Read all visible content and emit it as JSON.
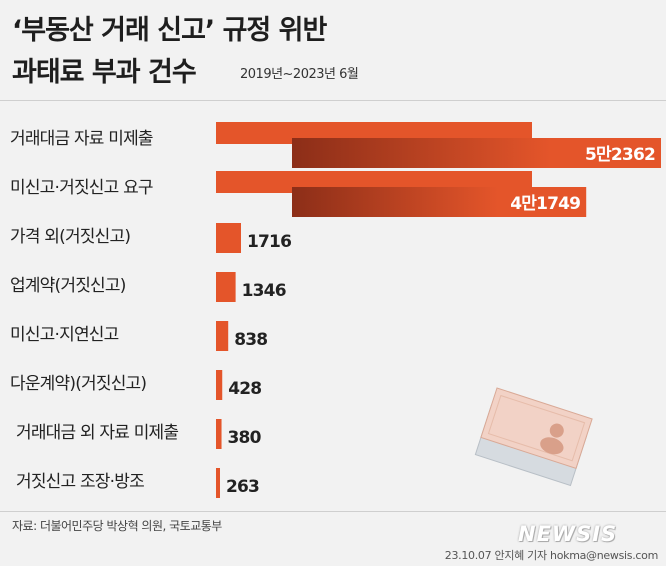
{
  "header": {
    "title_line1": "‘부동산 거래 신고’ 규정 위반",
    "title_line2": "과태료 부과 건수",
    "period": "2019년~2023년 6월"
  },
  "footer": {
    "source": "자료: 더불어민주당 박상혁 의원, 국토교통부",
    "credit": "23.10.07 안지혜 기자 hokma@newsis.com",
    "logo": "NEWSIS"
  },
  "colors": {
    "bar": "#e4552a",
    "bar_dark": "#8c2e18",
    "background": "#f2f2f2"
  },
  "chart_data": {
    "type": "bar",
    "orientation": "horizontal",
    "title": "‘부동산 거래 신고’ 규정 위반 과태료 부과 건수",
    "categories": [
      "거래대금 자료 미제출",
      "미신고·거짓신고 요구",
      "가격 외(거짓신고)",
      "업계약(거짓신고)",
      "미신고·지연신고",
      "다운계약)(거짓신고)",
      "거래대금 외 자료 미제출",
      "거짓신고 조장·방조"
    ],
    "values": [
      52362,
      41749,
      1716,
      1346,
      838,
      428,
      380,
      263
    ],
    "value_labels": [
      "5만2362",
      "4만1749",
      "1716",
      "1346",
      "838",
      "428",
      "380",
      "263"
    ],
    "axis_break": true,
    "grid": false,
    "legend": "none"
  }
}
